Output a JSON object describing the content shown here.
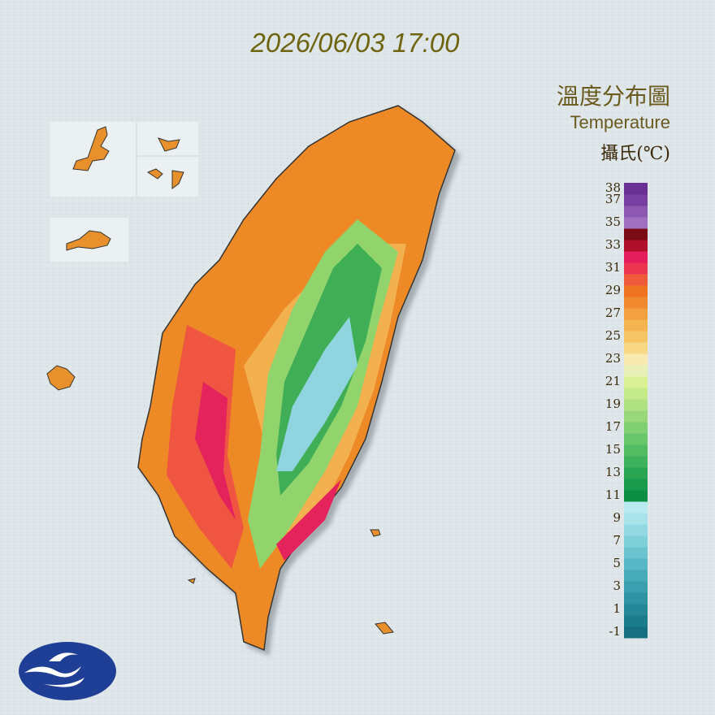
{
  "header": {
    "datetime": "2026/06/03 17:00"
  },
  "legend": {
    "title": "溫度分布圖",
    "subtitle": "Temperature",
    "unit": "攝氏(℃)",
    "range": [
      -1,
      39
    ],
    "ticks": [
      38,
      37,
      35,
      33,
      31,
      29,
      27,
      25,
      23,
      21,
      19,
      17,
      15,
      13,
      11,
      9,
      7,
      5,
      3,
      1,
      -1
    ],
    "colors": [
      "#17707f",
      "#1d7c8b",
      "#258898",
      "#2e93a3",
      "#3a9fae",
      "#48abb9",
      "#58b7c4",
      "#6ac3ce",
      "#7ecfd8",
      "#93d9e1",
      "#a8e3ea",
      "#b8eaf0",
      "#0b8f45",
      "#1a9a4c",
      "#2aa553",
      "#3db15b",
      "#52bc62",
      "#68c66b",
      "#80cf72",
      "#98d87a",
      "#b0e282",
      "#c6eb8a",
      "#daf295",
      "#e8f0b8",
      "#f8eab0",
      "#f8d884",
      "#f6c666",
      "#f4b450",
      "#f2a040",
      "#f08a2c",
      "#ee7422",
      "#ef5a3a",
      "#ec3550",
      "#e41d5c",
      "#b0102a",
      "#7a0c14",
      "#a070c0",
      "#8c58b0",
      "#7840a0",
      "#6a3096"
    ]
  }
}
